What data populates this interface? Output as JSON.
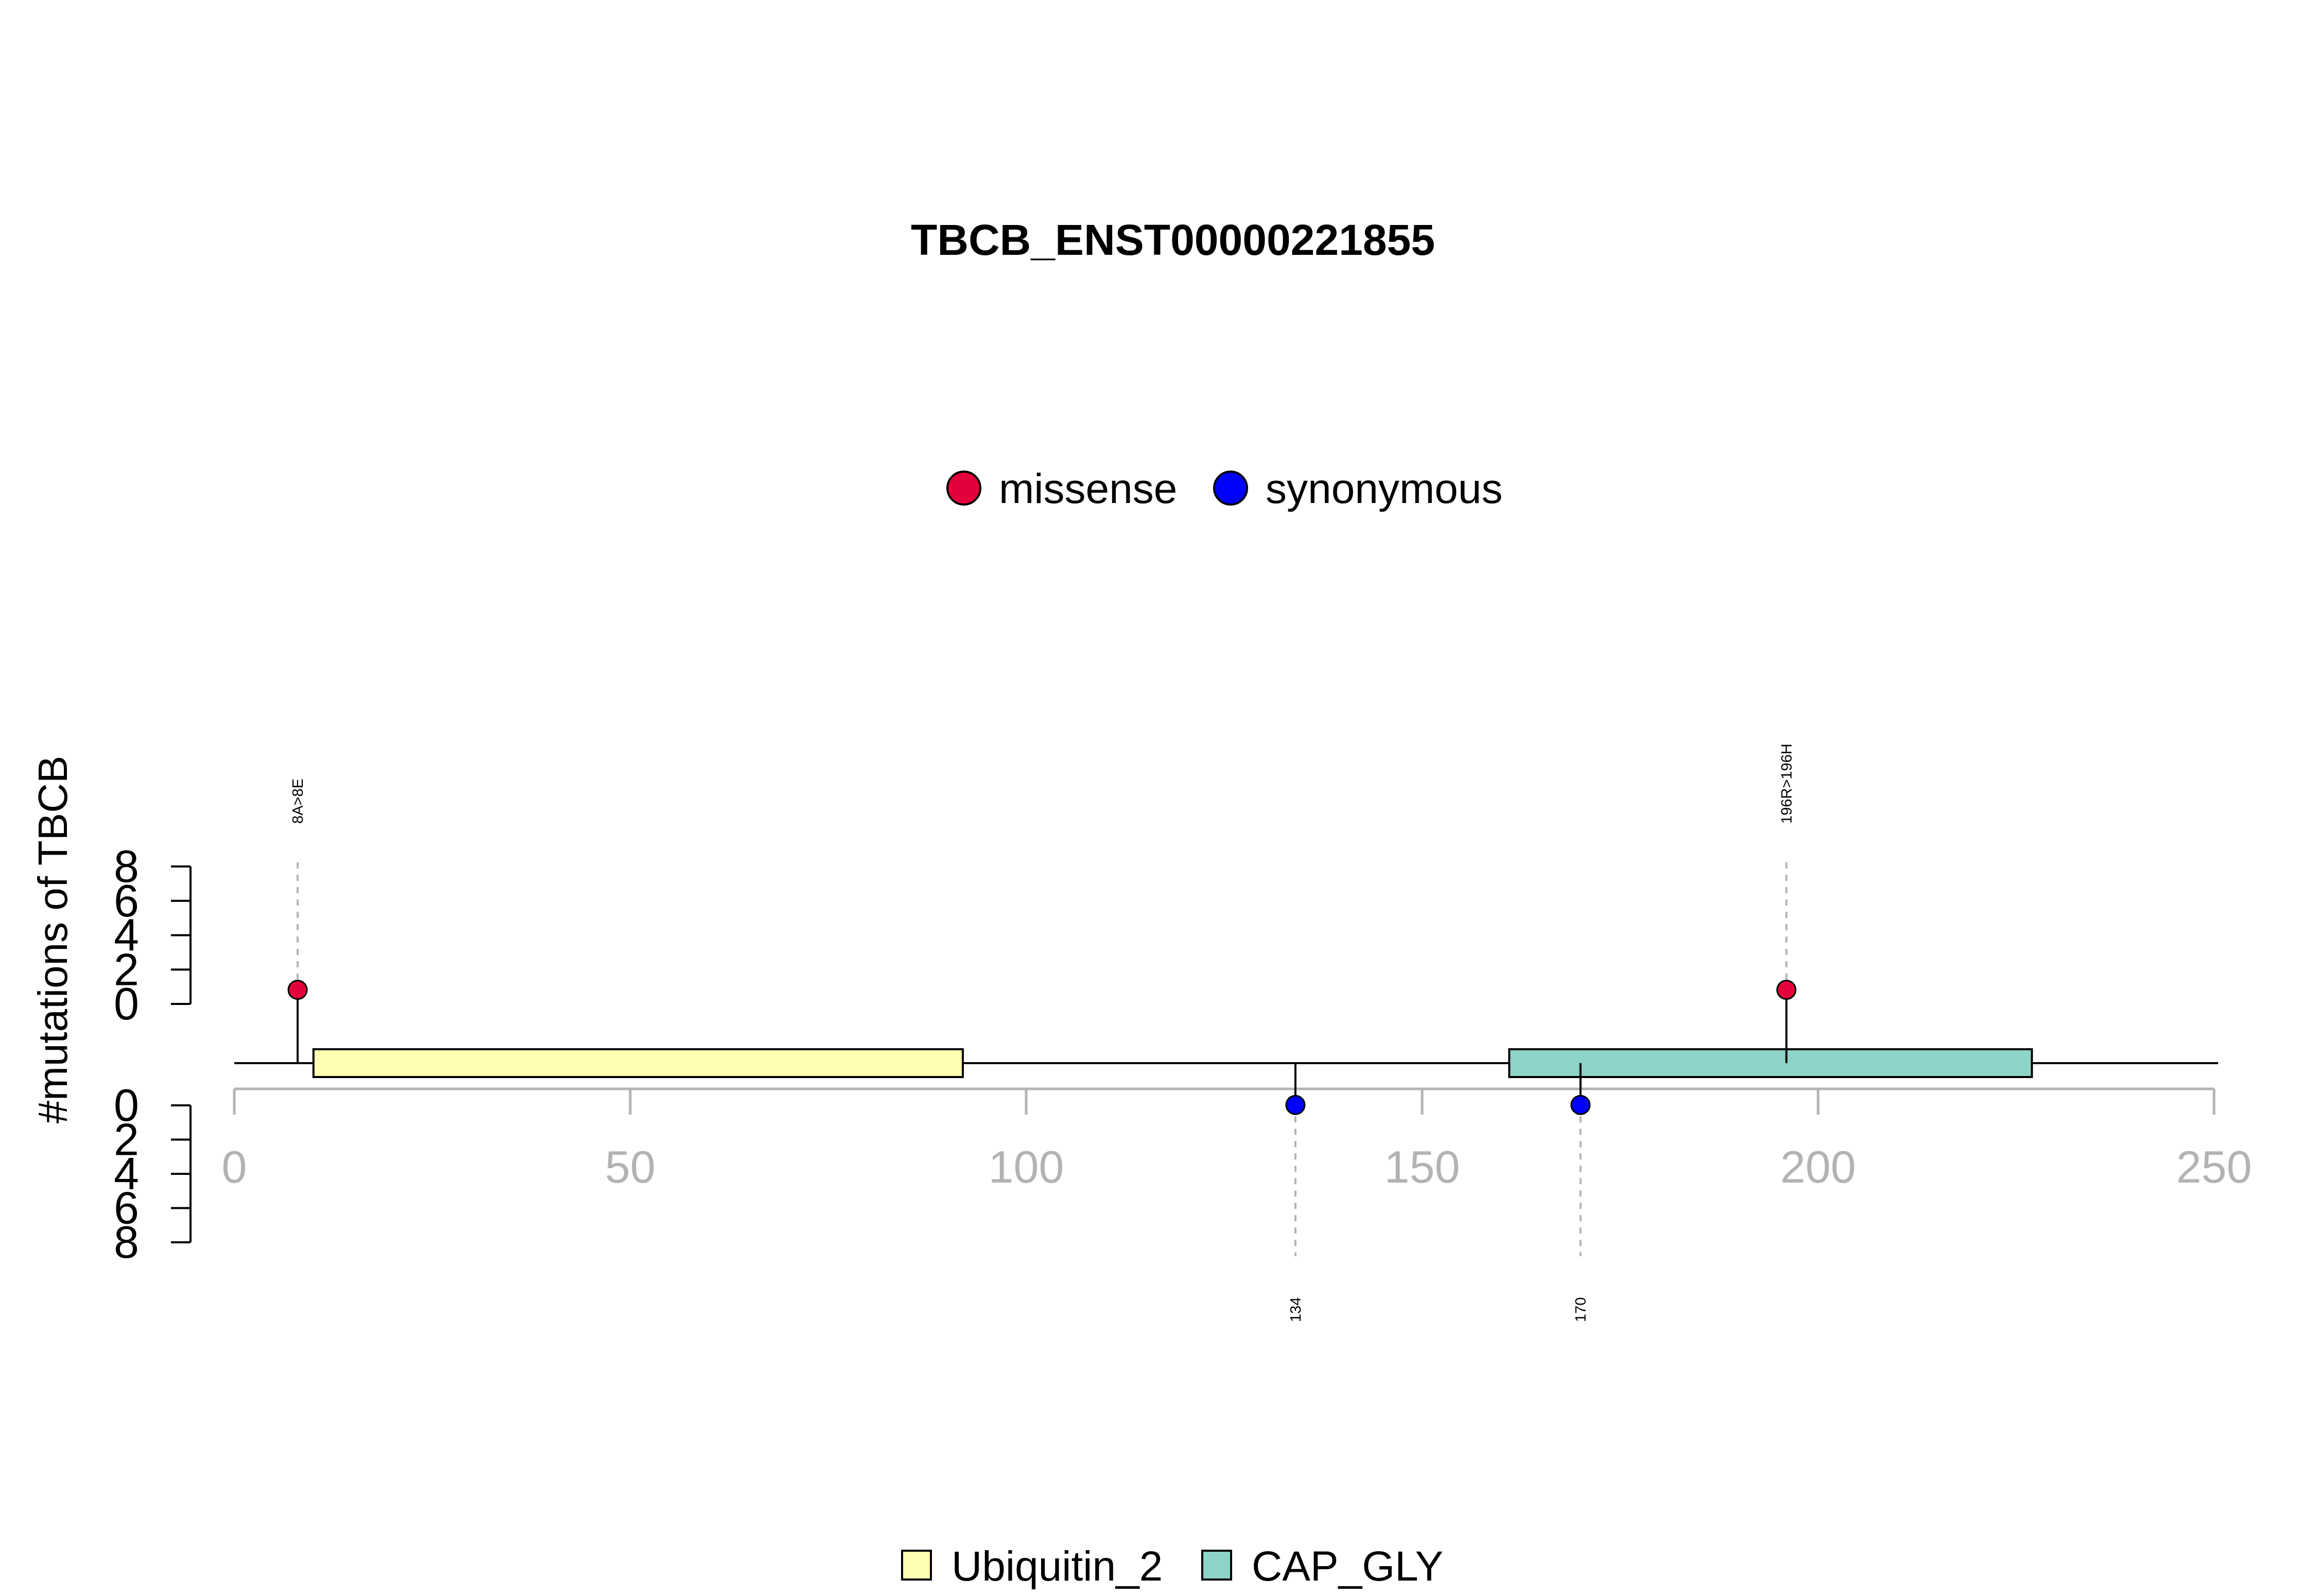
{
  "chart_data": {
    "type": "lollipop",
    "title": "TBCB_ENST00000221855",
    "ylabel": "#mutations of TBCB",
    "xlim": [
      0,
      250
    ],
    "xticks": [
      0,
      50,
      100,
      150,
      200,
      250
    ],
    "yticks_top": [
      0,
      2,
      4,
      6,
      8
    ],
    "yticks_bottom": [
      0,
      2,
      4,
      6,
      8
    ],
    "mutation_legend": [
      {
        "name": "missense",
        "color": "#E4003A"
      },
      {
        "name": "synonymous",
        "color": "#0000FF"
      }
    ],
    "domain_legend": [
      {
        "name": "Ubiquitin_2",
        "color": "#FFFFB3"
      },
      {
        "name": "CAP_GLY",
        "color": "#8DD3C7"
      }
    ],
    "domains": [
      {
        "name": "Ubiquitin_2",
        "start": 10,
        "end": 92,
        "color": "#FFFFB3"
      },
      {
        "name": "CAP_GLY",
        "start": 161,
        "end": 227,
        "color": "#8DD3C7"
      }
    ],
    "mutations": [
      {
        "position": 8,
        "count": 1,
        "type": "missense",
        "label": "8A>8E",
        "side": "top"
      },
      {
        "position": 196,
        "count": 1,
        "type": "missense",
        "label": "196R>196H",
        "side": "top"
      },
      {
        "position": 134,
        "count": 1,
        "type": "synonymous",
        "label": "134",
        "side": "bottom"
      },
      {
        "position": 170,
        "count": 1,
        "type": "synonymous",
        "label": "170",
        "side": "bottom"
      }
    ]
  }
}
